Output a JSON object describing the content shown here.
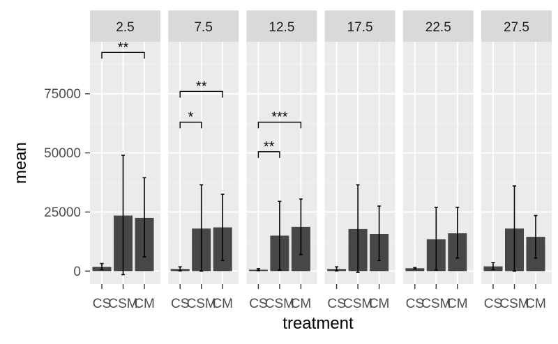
{
  "chart_data": {
    "type": "bar",
    "xlabel": "treatment",
    "ylabel": "mean",
    "ylim": [
      -5500,
      97000
    ],
    "yticks": [
      0,
      25000,
      50000,
      75000
    ],
    "ytick_labels": [
      "0",
      "25000",
      "50000",
      "75000"
    ],
    "categories": [
      "CS",
      "CSM",
      "CM"
    ],
    "facets": [
      {
        "label": "2.5",
        "bars": [
          {
            "category": "CS",
            "value": 1800,
            "err_low": 700,
            "err_high": 3200
          },
          {
            "category": "CSM",
            "value": 23500,
            "err_low": -1500,
            "err_high": 49000
          },
          {
            "category": "CM",
            "value": 22500,
            "err_low": 6000,
            "err_high": 39500
          }
        ],
        "significance": [
          {
            "from": "CS",
            "to": "CM",
            "y": 92500,
            "label": "**"
          }
        ]
      },
      {
        "label": "7.5",
        "bars": [
          {
            "category": "CS",
            "value": 900,
            "err_low": 100,
            "err_high": 1800
          },
          {
            "category": "CSM",
            "value": 18000,
            "err_low": 0,
            "err_high": 36500
          },
          {
            "category": "CM",
            "value": 18500,
            "err_low": 4500,
            "err_high": 32500
          }
        ],
        "significance": [
          {
            "from": "CS",
            "to": "CSM",
            "y": 63000,
            "label": "*"
          },
          {
            "from": "CS",
            "to": "CM",
            "y": 76000,
            "label": "**"
          }
        ]
      },
      {
        "label": "12.5",
        "bars": [
          {
            "category": "CS",
            "value": 600,
            "err_low": 200,
            "err_high": 1000
          },
          {
            "category": "CSM",
            "value": 15000,
            "err_low": 500,
            "err_high": 29500
          },
          {
            "category": "CM",
            "value": 18700,
            "err_low": 7000,
            "err_high": 30500
          }
        ],
        "significance": [
          {
            "from": "CS",
            "to": "CSM",
            "y": 50500,
            "label": "**"
          },
          {
            "from": "CS",
            "to": "CM",
            "y": 63000,
            "label": "***"
          }
        ]
      },
      {
        "label": "17.5",
        "bars": [
          {
            "category": "CS",
            "value": 900,
            "err_low": 100,
            "err_high": 1800
          },
          {
            "category": "CSM",
            "value": 17800,
            "err_low": -500,
            "err_high": 36500
          },
          {
            "category": "CM",
            "value": 15700,
            "err_low": 4500,
            "err_high": 27500
          }
        ],
        "significance": []
      },
      {
        "label": "22.5",
        "bars": [
          {
            "category": "CS",
            "value": 1200,
            "err_low": 900,
            "err_high": 1500
          },
          {
            "category": "CSM",
            "value": 13500,
            "err_low": 500,
            "err_high": 27000
          },
          {
            "category": "CM",
            "value": 16000,
            "err_low": 5500,
            "err_high": 27000
          }
        ],
        "significance": []
      },
      {
        "label": "27.5",
        "bars": [
          {
            "category": "CS",
            "value": 2000,
            "err_low": 700,
            "err_high": 3600
          },
          {
            "category": "CSM",
            "value": 18000,
            "err_low": 0,
            "err_high": 36000
          },
          {
            "category": "CM",
            "value": 14500,
            "err_low": 5500,
            "err_high": 23500
          }
        ],
        "significance": []
      }
    ]
  },
  "colors": {
    "panel_bg": "#ebebeb",
    "strip_bg": "#d9d9d9",
    "grid_major": "#ffffff",
    "grid_minor": "#f3f3f3",
    "bar_fill": "#474747",
    "error_bar": "#000000",
    "tick": "#333333"
  }
}
